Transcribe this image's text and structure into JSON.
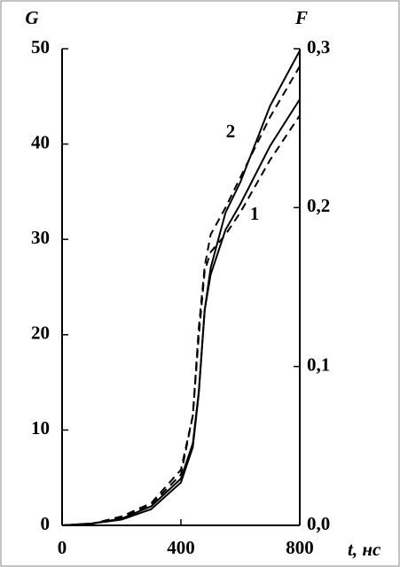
{
  "chart_data": {
    "type": "line",
    "y_label": "G",
    "y2_label": "F",
    "x_label": "t, нс",
    "x": [
      0,
      100,
      200,
      300,
      400,
      440,
      460,
      480,
      500,
      550,
      600,
      700,
      800
    ],
    "xlim": [
      0,
      800
    ],
    "xticks": [
      0,
      400,
      800
    ],
    "ylim": [
      0,
      50
    ],
    "yticks": [
      0,
      10,
      20,
      30,
      40,
      50
    ],
    "y2lim": [
      0,
      0.3
    ],
    "y2ticks": [
      {
        "value": 0,
        "label": "0,0"
      },
      {
        "value": 0.1,
        "label": "0,1"
      },
      {
        "value": 0.2,
        "label": "0,2"
      },
      {
        "value": 0.3,
        "label": "0,3"
      }
    ],
    "series": [
      {
        "name": "1",
        "color": "#000000",
        "dash": false,
        "values": [
          0,
          0.2,
          0.6,
          1.7,
          4.5,
          8.2,
          13.8,
          22.6,
          26.3,
          31,
          33.7,
          39.8,
          44.7
        ]
      },
      {
        "name": "2",
        "color": "#000000",
        "dash": false,
        "values": [
          0,
          0.2,
          0.7,
          2,
          4.9,
          8.6,
          14,
          22.6,
          27,
          32.8,
          36,
          44,
          49.8
        ]
      },
      {
        "color": "#000000",
        "dash": true,
        "axis": "y2",
        "values": [
          0,
          0.001,
          0.005,
          0.013,
          0.032,
          0.069,
          0.119,
          0.16,
          0.172,
          0.183,
          0.197,
          0.23,
          0.258
        ]
      },
      {
        "color": "#000000",
        "dash": true,
        "axis": "y2",
        "values": [
          0,
          0.001,
          0.0056,
          0.014,
          0.035,
          0.069,
          0.124,
          0.163,
          0.183,
          0.2,
          0.219,
          0.257,
          0.289
        ]
      }
    ]
  }
}
